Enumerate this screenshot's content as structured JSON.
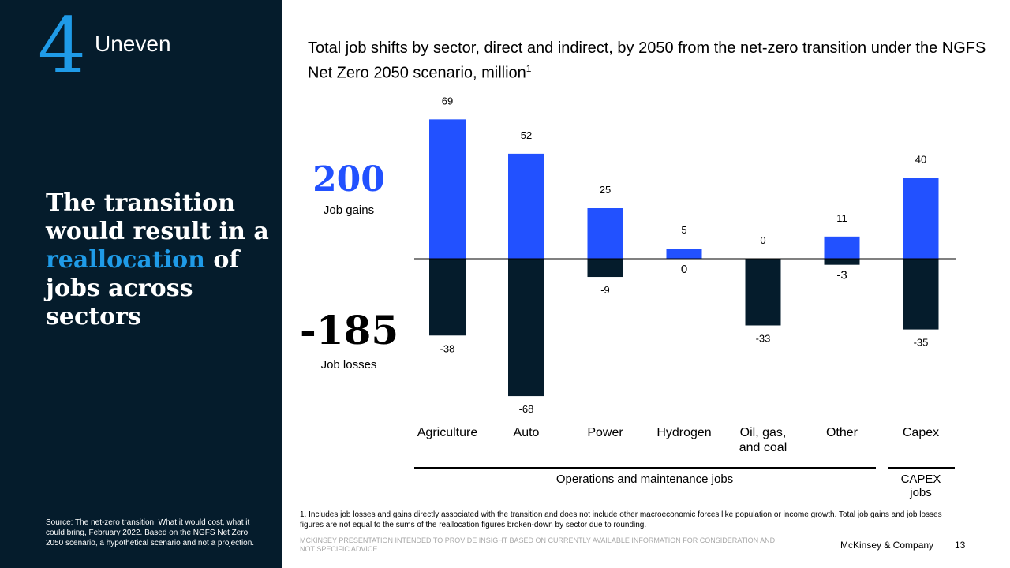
{
  "section": {
    "number": "4",
    "label": "Uneven"
  },
  "headline": {
    "before": "The transition would result in a ",
    "highlight": "reallocation",
    "after": " of jobs across sectors"
  },
  "source": "Source: The net-zero transition: What it would cost, what it could bring, February 2022. Based on the NGFS Net Zero 2050 scenario, a hypothetical scenario and not a projection.",
  "title": {
    "text": "Total job shifts by sector, direct and indirect, by 2050 from the net-zero transition under the NGFS Net Zero 2050 scenario, million",
    "superscript": "1"
  },
  "summary": {
    "gains": {
      "value": "200",
      "label": "Job gains"
    },
    "losses": {
      "value": "-185",
      "label": "Job losses"
    }
  },
  "chart_data": {
    "type": "bar",
    "categories": [
      "Agriculture",
      "Auto",
      "Power",
      "Hydrogen",
      "Oil, gas, and coal",
      "Other",
      "Capex"
    ],
    "category_lines": [
      [
        "Agriculture"
      ],
      [
        "Auto"
      ],
      [
        "Power"
      ],
      [
        "Hydrogen"
      ],
      [
        "Oil, gas,",
        "and coal"
      ],
      [
        "Other"
      ],
      [
        "Capex"
      ]
    ],
    "series": [
      {
        "name": "Job gains",
        "values": [
          69,
          52,
          25,
          5,
          0,
          11,
          40
        ],
        "labels": [
          "69",
          "52",
          "25",
          "5",
          "0",
          "11",
          "40"
        ],
        "color": "#2251FF"
      },
      {
        "name": "Job losses",
        "values": [
          -38,
          -68,
          -9,
          0,
          -33,
          -3,
          -35
        ],
        "labels": [
          "-38",
          "-68",
          "-9",
          "0",
          "-33",
          "-3",
          "-35"
        ],
        "color": "#051C2C"
      }
    ],
    "groups": [
      {
        "label": "Operations and maintenance jobs",
        "categories": [
          "Agriculture",
          "Auto",
          "Power",
          "Hydrogen",
          "Oil, gas, and coal",
          "Other"
        ]
      },
      {
        "label": "CAPEX jobs",
        "lines": [
          "CAPEX",
          "jobs"
        ],
        "categories": [
          "Capex"
        ]
      }
    ],
    "ylim": [
      -68,
      69
    ]
  },
  "footnote": "1. Includes job losses and gains directly associated with the transition and does not include other macroeconomic forces like population or income growth.  Total job gains and job losses figures are not equal to the sums of the reallocation figures broken-down by sector due to rounding.",
  "disclaimer": "McKinsey presentation intended to provide insight based on currently available information for consideration and not specific advice.",
  "brand": "McKinsey & Company",
  "page_number": "13"
}
